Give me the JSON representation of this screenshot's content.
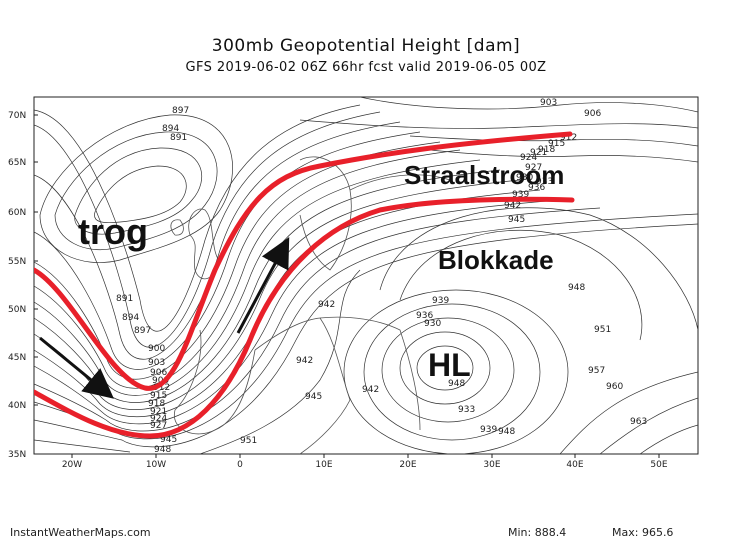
{
  "title": "300mb Geopotential Height [dam]",
  "subtitle": "GFS 2019-06-02 06Z 66hr fcst valid 2019-06-05 00Z",
  "footer": {
    "source": "InstantWeatherMaps.com",
    "min_label": "Min: 888.4",
    "max_label": "Max: 965.6"
  },
  "axes": {
    "lat_ticks": [
      "70N",
      "65N",
      "60N",
      "55N",
      "50N",
      "45N",
      "40N",
      "35N"
    ],
    "lon_ticks": [
      "20W",
      "10W",
      "0",
      "10E",
      "20E",
      "30E",
      "40E",
      "50E"
    ]
  },
  "annotations": {
    "trough": "trog",
    "jet_stream": "Straalstroom",
    "blocking": "Blokkade",
    "high_low": "HL"
  },
  "contour_labels": [
    "897",
    "894",
    "891",
    "903",
    "906",
    "912",
    "915",
    "918",
    "921",
    "924",
    "927",
    "930",
    "933",
    "936",
    "939",
    "942",
    "945",
    "948",
    "951",
    "957",
    "960",
    "963",
    "891",
    "894",
    "897",
    "900",
    "903",
    "906",
    "909",
    "912",
    "915",
    "918",
    "921",
    "924",
    "927",
    "930",
    "936",
    "939",
    "942",
    "942",
    "942",
    "945",
    "948",
    "948",
    "933",
    "939",
    "945",
    "948",
    "951",
    "957",
    "960",
    "963"
  ],
  "colors": {
    "jet_outline": "#e8202a",
    "arrow": "#111111",
    "contour": "#333333"
  }
}
